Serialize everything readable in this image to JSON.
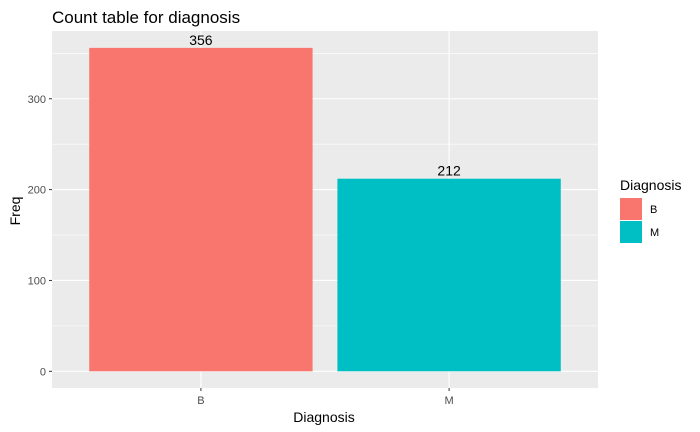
{
  "chart_data": {
    "type": "bar",
    "title": "Count table for diagnosis",
    "xlabel": "Diagnosis",
    "ylabel": "Freq",
    "categories": [
      "B",
      "M"
    ],
    "values": [
      356,
      212
    ],
    "data_labels": [
      "356",
      "212"
    ],
    "colors": [
      "#F8766D",
      "#00BFC4"
    ],
    "yticks": [
      0,
      100,
      200,
      300
    ],
    "ytick_labels": [
      "0",
      "100",
      "200",
      "300"
    ],
    "ylim": [
      0,
      356
    ],
    "grid": true,
    "panel_background": "#EBEBEB",
    "legend": {
      "title": "Diagnosis",
      "position": "right",
      "entries": [
        "B",
        "M"
      ]
    }
  }
}
